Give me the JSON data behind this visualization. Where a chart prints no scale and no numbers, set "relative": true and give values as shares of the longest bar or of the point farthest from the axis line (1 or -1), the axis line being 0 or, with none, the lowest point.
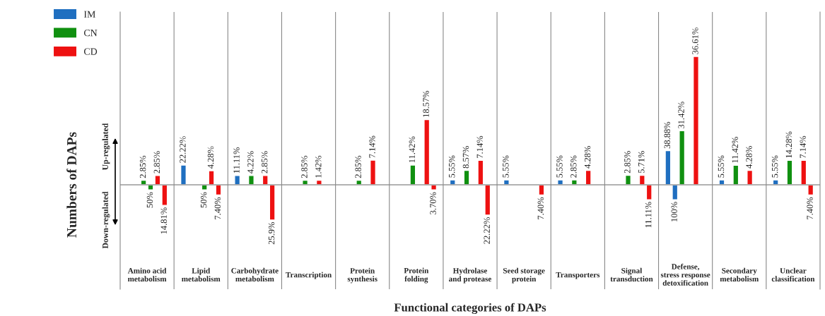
{
  "chart_data": {
    "type": "bar",
    "relative": true,
    "xlabel": "Functional categories of DAPs",
    "ylabel": "Numbers of DAPs",
    "categories": [
      "Amino acid\nmetabolism",
      "Lipid\nmetabolism",
      "Carbohydrate\nmetabolism",
      "Transcription",
      "Protein\nsynthesis",
      "Protein\nfolding",
      "Hydrolase\nand protease",
      "Seed storage\nprotein",
      "Transporters",
      "Signal\ntransduction",
      "Defense,\nstress response\ndetoxification",
      "Secondary\nmetabolism",
      "Unclear\nclassification"
    ],
    "legend": "top left",
    "grid": false,
    "series": [
      {
        "name": "IM",
        "color": "#1f6fc0",
        "values": [
          null,
          0.154,
          0.072,
          null,
          null,
          null,
          0.038,
          0.038,
          0.038,
          null,
          0.266,
          0.038,
          0.038
        ]
      },
      {
        "color": "#1f6fc0",
        "values": [
          null,
          null,
          null,
          null,
          null,
          null,
          null,
          null,
          null,
          null,
          -0.116,
          null,
          null
        ]
      },
      {
        "name": "CN",
        "color": "#109010",
        "values": [
          0.036,
          null,
          0.072,
          0.036,
          0.036,
          0.154,
          0.112,
          null,
          0.038,
          0.074,
          0.422,
          0.152,
          0.19
        ]
      },
      {
        "color": "#109010",
        "values": [
          -0.04,
          -0.04,
          null,
          null,
          null,
          null,
          null,
          null,
          null,
          null,
          null,
          null,
          null
        ]
      },
      {
        "name": "CD",
        "color": "#ee1111",
        "values": [
          0.072,
          0.11,
          0.072,
          0.036,
          0.192,
          0.508,
          0.19,
          null,
          0.112,
          0.074,
          1,
          0.112,
          0.19
        ]
      },
      {
        "color": "#ee1111",
        "values": [
          -0.16,
          -0.08,
          -0.274,
          null,
          null,
          -0.04,
          -0.236,
          -0.08,
          null,
          -0.116,
          null,
          null,
          -0.08
        ]
      }
    ],
    "annotations": [
      "Up-regulated",
      "Down-regulated",
      "22.22%",
      "11.11%",
      "5.55%",
      "5.55%",
      "5.55%",
      "38.88%",
      "5.55%",
      "5.55%",
      "100%",
      "2.85%",
      "4.22%",
      "2.85%",
      "2.85%",
      "11.42%",
      "8.57%",
      "2.85%",
      "2.85%",
      "31.42%",
      "11.42%",
      "14.28%",
      "50%",
      "50%",
      "2.85%",
      "4.28%",
      "2.85%",
      "1.42%",
      "7.14%",
      "18.57%",
      "7.14%",
      "4.28%",
      "5.71%",
      "36.61%",
      "4.28%",
      "7.14%",
      "14.81%",
      "7.40%",
      "25.9%",
      "3.70%",
      "22.22%",
      "7.40%",
      "11.11%",
      "7.40%"
    ]
  }
}
